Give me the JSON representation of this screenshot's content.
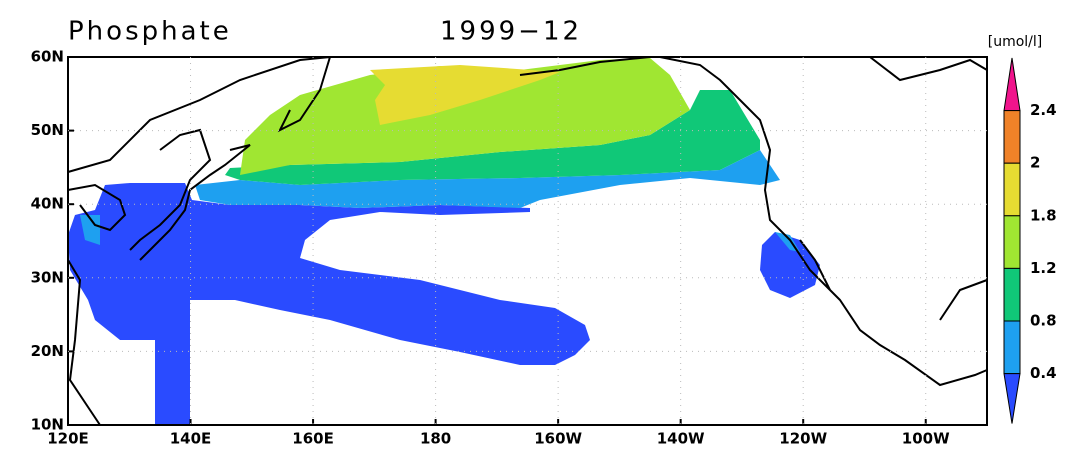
{
  "title": "Phosphate",
  "date": "1999−12",
  "units": "[umol/l]",
  "lat_labels": [
    "60N",
    "50N",
    "40N",
    "30N",
    "20N",
    "10N"
  ],
  "lon_labels": [
    "120E",
    "140E",
    "160E",
    "180",
    "160W",
    "140W",
    "120W",
    "100W"
  ],
  "colorbar": {
    "labels": [
      2.4,
      2,
      1.8,
      1.2,
      0.8,
      0.4
    ],
    "colors": [
      "#f0148c",
      "#f08228",
      "#e6dc32",
      "#a0e632",
      "#10c878",
      "#1ea0f0",
      "#2a4bff"
    ]
  }
}
